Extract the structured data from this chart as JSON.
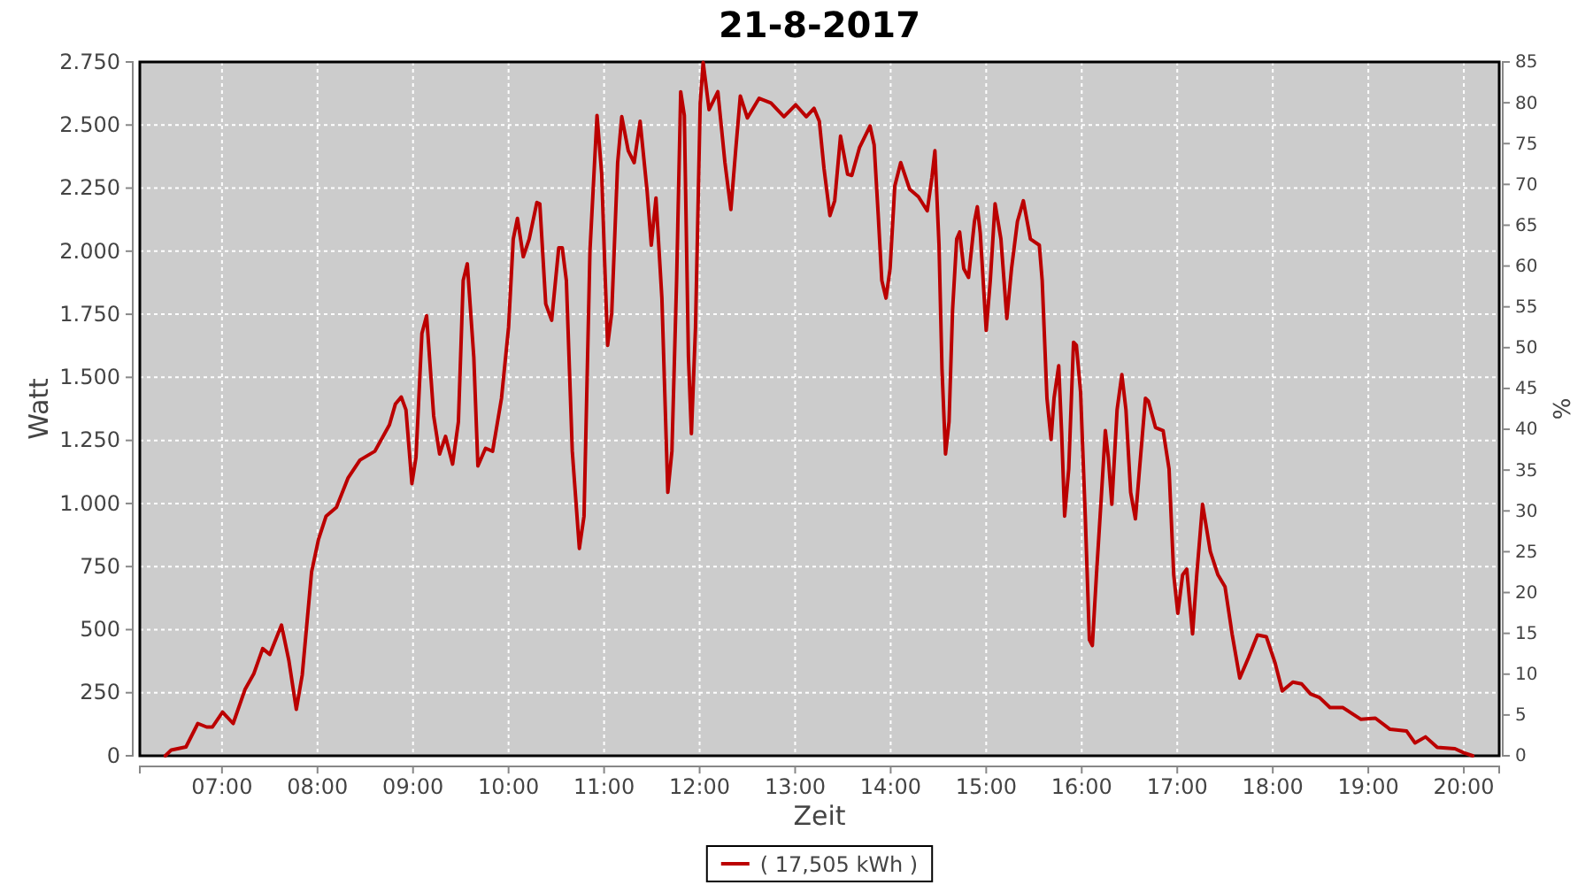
{
  "chart_data": {
    "type": "line",
    "title": "21-8-2017",
    "xlabel": "Zeit",
    "ylabel": "Watt",
    "y2label": "%",
    "legend": "bottom",
    "grid": true,
    "marker": "none",
    "line_style": "solid",
    "xlim": [
      6.14,
      20.37
    ],
    "xticks": [
      {
        "value": 7,
        "label": "07:00"
      },
      {
        "value": 8,
        "label": "08:00"
      },
      {
        "value": 9,
        "label": "09:00"
      },
      {
        "value": 10,
        "label": "10:00"
      },
      {
        "value": 11,
        "label": "11:00"
      },
      {
        "value": 12,
        "label": "12:00"
      },
      {
        "value": 13,
        "label": "13:00"
      },
      {
        "value": 14,
        "label": "14:00"
      },
      {
        "value": 15,
        "label": "15:00"
      },
      {
        "value": 16,
        "label": "16:00"
      },
      {
        "value": 17,
        "label": "17:00"
      },
      {
        "value": 18,
        "label": "18:00"
      },
      {
        "value": 19,
        "label": "19:00"
      },
      {
        "value": 20,
        "label": "20:00"
      }
    ],
    "ylim": [
      0,
      2750
    ],
    "yticks": [
      0,
      250,
      500,
      750,
      {
        "value": 1000,
        "label": "1.000"
      },
      {
        "value": 1250,
        "label": "1.250"
      },
      {
        "value": 1500,
        "label": "1.500"
      },
      {
        "value": 1750,
        "label": "1.750"
      },
      {
        "value": 2000,
        "label": "2.000"
      },
      {
        "value": 2250,
        "label": "2.250"
      },
      {
        "value": 2500,
        "label": "2.500"
      },
      {
        "value": 2750,
        "label": "2.750"
      }
    ],
    "y2lim": [
      0,
      85
    ],
    "y2ticks": [
      0,
      5,
      10,
      15,
      20,
      25,
      30,
      35,
      40,
      45,
      50,
      55,
      60,
      65,
      70,
      75,
      80,
      85
    ],
    "series": [
      {
        "name": "( 17,505 kWh )",
        "color": "#bb0000",
        "x": [
          6.407,
          6.469,
          6.623,
          6.747,
          6.84,
          6.9,
          7.006,
          7.117,
          7.24,
          7.333,
          7.426,
          7.5,
          7.623,
          7.7,
          7.778,
          7.84,
          7.938,
          8.01,
          8.09,
          8.198,
          8.321,
          8.444,
          8.6,
          8.753,
          8.815,
          8.877,
          8.926,
          8.988,
          9.031,
          9.093,
          9.142,
          9.216,
          9.278,
          9.34,
          9.414,
          9.475,
          9.525,
          9.568,
          9.636,
          9.679,
          9.759,
          9.833,
          9.926,
          10.0,
          10.049,
          10.093,
          10.154,
          10.216,
          10.296,
          10.327,
          10.389,
          10.451,
          10.525,
          10.562,
          10.605,
          10.667,
          10.741,
          10.79,
          10.852,
          10.926,
          10.975,
          11.006,
          11.037,
          11.08,
          11.142,
          11.185,
          11.253,
          11.315,
          11.377,
          11.451,
          11.494,
          11.543,
          11.605,
          11.667,
          11.71,
          11.759,
          11.802,
          11.84,
          11.883,
          11.914,
          11.957,
          12.006,
          12.037,
          12.099,
          12.191,
          12.265,
          12.327,
          12.377,
          12.426,
          12.5,
          12.623,
          12.747,
          12.883,
          13.006,
          13.117,
          13.198,
          13.253,
          13.302,
          13.364,
          13.414,
          13.475,
          13.549,
          13.593,
          13.673,
          13.784,
          13.827,
          13.87,
          13.907,
          13.951,
          13.994,
          14.043,
          14.105,
          14.198,
          14.29,
          14.383,
          14.432,
          14.463,
          14.506,
          14.537,
          14.574,
          14.611,
          14.648,
          14.691,
          14.722,
          14.765,
          14.815,
          14.877,
          14.907,
          14.938,
          15.0,
          15.043,
          15.093,
          15.154,
          15.216,
          15.265,
          15.327,
          15.389,
          15.463,
          15.556,
          15.586,
          15.636,
          15.679,
          15.71,
          15.759,
          15.79,
          15.821,
          15.864,
          15.914,
          15.944,
          15.988,
          16.037,
          16.08,
          16.111,
          16.154,
          16.204,
          16.247,
          16.278,
          16.315,
          16.37,
          16.42,
          16.463,
          16.512,
          16.562,
          16.605,
          16.667,
          16.698,
          16.772,
          16.852,
          16.914,
          16.963,
          17.006,
          17.056,
          17.099,
          17.16,
          17.204,
          17.265,
          17.346,
          17.426,
          17.5,
          17.574,
          17.654,
          17.747,
          17.84,
          17.932,
          18.025,
          18.099,
          18.21,
          18.302,
          18.395,
          18.488,
          18.599,
          18.735,
          18.92,
          19.074,
          19.228,
          19.401,
          19.488,
          19.599,
          19.722,
          19.907,
          20.0,
          20.093
        ],
        "values": [
          0,
          23,
          35,
          128,
          114,
          114,
          173,
          128,
          262,
          325,
          425,
          402,
          518,
          378,
          184,
          320,
          729,
          857,
          950,
          985,
          1102,
          1172,
          1207,
          1312,
          1394,
          1422,
          1371,
          1079,
          1184,
          1674,
          1744,
          1347,
          1196,
          1266,
          1156,
          1324,
          1884,
          1950,
          1581,
          1149,
          1219,
          1207,
          1417,
          1698,
          2048,
          2130,
          1978,
          2048,
          2193,
          2188,
          1791,
          1726,
          2013,
          2013,
          1884,
          1207,
          822,
          950,
          2001,
          2538,
          2305,
          1954,
          1627,
          1756,
          2351,
          2533,
          2398,
          2351,
          2515,
          2235,
          2024,
          2211,
          1814,
          1044,
          1207,
          1884,
          2632,
          2538,
          1581,
          1277,
          1698,
          2585,
          2748,
          2561,
          2632,
          2351,
          2165,
          2398,
          2615,
          2528,
          2606,
          2587,
          2533,
          2580,
          2533,
          2566,
          2515,
          2328,
          2141,
          2200,
          2456,
          2305,
          2300,
          2410,
          2496,
          2421,
          2141,
          1884,
          1814,
          1931,
          2258,
          2351,
          2246,
          2216,
          2160,
          2293,
          2398,
          2024,
          1534,
          1196,
          1324,
          1767,
          2048,
          2076,
          1931,
          1896,
          2118,
          2176,
          2071,
          1686,
          1884,
          2188,
          2048,
          1733,
          1931,
          2118,
          2200,
          2048,
          2024,
          1884,
          1417,
          1254,
          1417,
          1546,
          1277,
          950,
          1137,
          1639,
          1627,
          1441,
          950,
          460,
          437,
          717,
          1020,
          1289,
          1184,
          997,
          1371,
          1511,
          1371,
          1044,
          939,
          1137,
          1417,
          1406,
          1301,
          1289,
          1137,
          717,
          565,
          717,
          740,
          483,
          717,
          997,
          810,
          717,
          670,
          483,
          308,
          390,
          479,
          472,
          367,
          257,
          292,
          285,
          245,
          231,
          191,
          191,
          145,
          149,
          105,
          98,
          51,
          75,
          33,
          28,
          12,
          0
        ]
      }
    ]
  }
}
